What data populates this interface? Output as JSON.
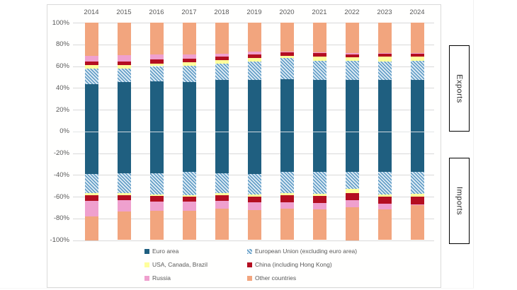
{
  "side_labels": {
    "exports": "Exports",
    "imports": "Imports"
  },
  "colors": {
    "gridline": "#D9D9D9",
    "zero_line": "#E2E6E8",
    "tick_text": "#595959",
    "legend_text": "#595959",
    "frame_border": "#DADADA",
    "box_border": "#000000"
  },
  "chart_data": {
    "type": "bar",
    "stacked": true,
    "diverging": true,
    "description": "Stacked 100% bars: exports above zero, imports below zero, by partner zone",
    "x_tick_labels": [
      "2014",
      "2015",
      "2016",
      "2017",
      "2018",
      "2019",
      "2020",
      "2021",
      "2022",
      "2023",
      "2024"
    ],
    "y_tick_labels": [
      "100%",
      "80%",
      "60%",
      "40%",
      "20%",
      "0%",
      "-20%",
      "-40%",
      "-60%",
      "-80%",
      "-100%"
    ],
    "ylim": [
      -100,
      100
    ],
    "grid": "horizontal",
    "legend_position": "bottom",
    "series": [
      {
        "name": "Euro area",
        "key": "euro-area",
        "color": "#1F5F80",
        "pattern": "solid",
        "exports": [
          43.5,
          45.5,
          46,
          45.5,
          47,
          47,
          48,
          47.5,
          47,
          47,
          47
        ],
        "imports": [
          -39.5,
          -38.5,
          -38.5,
          -37.5,
          -38.5,
          -39,
          -37.5,
          -37.5,
          -37.5,
          -37.5,
          -37.5
        ]
      },
      {
        "name": "European Union (excluding euro area)",
        "key": "eu-excluding-euro-area",
        "color": "#5897C2",
        "pattern": "hatch",
        "pattern_bg": "#D9E8F3",
        "exports": [
          14.5,
          12,
          14,
          15,
          15.5,
          17.5,
          19.5,
          17.5,
          18,
          17.5,
          18
        ],
        "imports": [
          -17.5,
          -18.5,
          -19.5,
          -21,
          -18.5,
          -19,
          -19.5,
          -20,
          -15.5,
          -20.5,
          -20
        ]
      },
      {
        "name": "USA, Canada, Brazil",
        "key": "usa-canada-brazil",
        "color": "#FFFF9C",
        "pattern": "solid",
        "exports": [
          3,
          3.5,
          2.5,
          3,
          3,
          3,
          2,
          4,
          3,
          4,
          4
        ],
        "imports": [
          -2,
          -1.5,
          -1.5,
          -1.5,
          -2,
          -2,
          -2,
          -2,
          -3.5,
          -2,
          -2.5
        ]
      },
      {
        "name": "China (including Hong Kong)",
        "key": "china-incl-hong-kong",
        "color": "#B40E21",
        "pattern": "solid",
        "exports": [
          3.5,
          3.5,
          3.5,
          3.5,
          3,
          3.5,
          3.5,
          3.5,
          2.5,
          3,
          2.5
        ],
        "imports": [
          -5,
          -4.5,
          -5,
          -4.5,
          -5,
          -5.5,
          -6.5,
          -6.5,
          -6.5,
          -6.5,
          -7
        ]
      },
      {
        "name": "Russia",
        "key": "russia",
        "color": "#EFA0CE",
        "pattern": "solid",
        "exports": [
          5,
          5.5,
          4.5,
          4,
          3,
          2.5,
          0.5,
          0.5,
          1.5,
          0.5,
          0.5
        ],
        "imports": [
          -14,
          -10.5,
          -8.5,
          -8.5,
          -7,
          -7,
          -5.5,
          -5.5,
          -7,
          -5,
          -0.5
        ]
      },
      {
        "name": "Other countries",
        "key": "other-countries",
        "color": "#F2A57E",
        "pattern": "solid",
        "exports": [
          30.5,
          30,
          29.5,
          29,
          28.5,
          26.5,
          26.5,
          27,
          28,
          28,
          28
        ],
        "imports": [
          -22,
          -26.5,
          -27,
          -27,
          -29,
          -27.5,
          -29,
          -28.5,
          -30,
          -28.5,
          -32.5
        ]
      }
    ]
  }
}
